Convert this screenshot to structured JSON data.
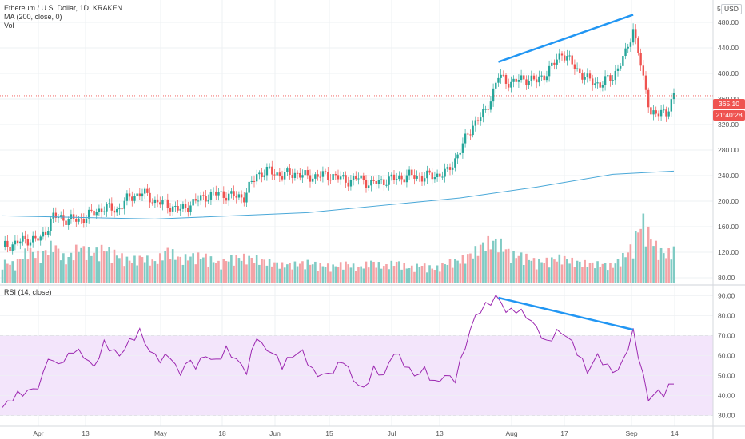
{
  "header": {
    "symbol": "Ethereum / U.S. Dollar, 1D, KRAKEN",
    "ma_label": "MA (200, close, 0)",
    "vol_label": "Vol",
    "currency": "USD",
    "partial_tick": "5"
  },
  "rsi_panel": {
    "label": "RSI (14, close)"
  },
  "badges": {
    "last_price": "365.10",
    "countdown": "21:40:28"
  },
  "colors": {
    "up": "#26a69a",
    "down": "#ef5350",
    "vol_up": "#80cbc4",
    "vol_down": "#f4a3a6",
    "ma": "#4aa8d8",
    "rsi": "#9c27b0",
    "rsi_band": "#f3e5fb",
    "trendline": "#2196f3",
    "grid": "#eef0f3",
    "price_line": "#ef5350"
  },
  "chart_data": [
    {
      "type": "candlestick",
      "title": "Ethereum / U.S. Dollar, 1D, KRAKEN",
      "ylabel": "USD",
      "x_tick_labels": [
        "Apr",
        "13",
        "May",
        "18",
        "Jun",
        "15",
        "Jul",
        "13",
        "Aug",
        "17",
        "Sep",
        "14"
      ],
      "y_tick_labels": [
        "480.00",
        "440.00",
        "400.00",
        "360.00",
        "320.00",
        "280.00",
        "240.00",
        "200.00",
        "160.00",
        "120.00",
        "80.00"
      ],
      "ylim": [
        70,
        515
      ],
      "last_price": 365.1,
      "close_trend": [
        [
          0,
          128
        ],
        [
          5,
          134
        ],
        [
          10,
          140
        ],
        [
          15,
          140
        ],
        [
          20,
          176
        ],
        [
          25,
          172
        ],
        [
          30,
          170
        ],
        [
          35,
          180
        ],
        [
          40,
          190
        ],
        [
          45,
          186
        ],
        [
          50,
          206
        ],
        [
          55,
          213
        ],
        [
          60,
          200
        ],
        [
          65,
          194
        ],
        [
          70,
          186
        ],
        [
          75,
          198
        ],
        [
          80,
          208
        ],
        [
          85,
          212
        ],
        [
          90,
          208
        ],
        [
          95,
          207
        ],
        [
          100,
          242
        ],
        [
          105,
          247
        ],
        [
          110,
          240
        ],
        [
          115,
          244
        ],
        [
          120,
          238
        ],
        [
          125,
          240
        ],
        [
          130,
          240
        ],
        [
          135,
          232
        ],
        [
          140,
          236
        ],
        [
          145,
          227
        ],
        [
          150,
          232
        ],
        [
          155,
          236
        ],
        [
          160,
          240
        ],
        [
          165,
          238
        ],
        [
          170,
          240
        ],
        [
          175,
          245
        ],
        [
          180,
          280
        ],
        [
          185,
          320
        ],
        [
          190,
          340
        ],
        [
          195,
          395
        ],
        [
          200,
          385
        ],
        [
          205,
          392
        ],
        [
          210,
          388
        ],
        [
          215,
          405
        ],
        [
          220,
          433
        ],
        [
          225,
          410
        ],
        [
          230,
          390
        ],
        [
          235,
          383
        ],
        [
          240,
          395
        ],
        [
          245,
          430
        ],
        [
          248,
          470
        ],
        [
          250,
          435
        ],
        [
          252,
          388
        ],
        [
          255,
          340
        ],
        [
          258,
          335
        ],
        [
          261,
          340
        ],
        [
          264,
          365
        ]
      ],
      "series": [
        {
          "name": "MA (200, close, 0)",
          "values": [
            [
              0,
              177
            ],
            [
              60,
              172
            ],
            [
              120,
              182
            ],
            [
              180,
              205
            ],
            [
              210,
              222
            ],
            [
              240,
              242
            ],
            [
              264,
              247
            ]
          ]
        }
      ],
      "trendline": [
        [
          195,
          418
        ],
        [
          248,
          492
        ]
      ]
    },
    {
      "type": "bar",
      "title": "Vol",
      "values": [
        [
          0,
          28
        ],
        [
          5,
          25
        ],
        [
          10,
          44
        ],
        [
          15,
          36
        ],
        [
          20,
          52
        ],
        [
          25,
          30
        ],
        [
          30,
          48
        ],
        [
          35,
          40
        ],
        [
          40,
          46
        ],
        [
          45,
          38
        ],
        [
          50,
          30
        ],
        [
          55,
          34
        ],
        [
          60,
          28
        ],
        [
          65,
          44
        ],
        [
          70,
          32
        ],
        [
          75,
          36
        ],
        [
          80,
          35
        ],
        [
          85,
          26
        ],
        [
          90,
          33
        ],
        [
          95,
          34
        ],
        [
          100,
          32
        ],
        [
          105,
          28
        ],
        [
          110,
          24
        ],
        [
          115,
          25
        ],
        [
          120,
          27
        ],
        [
          125,
          24
        ],
        [
          130,
          22
        ],
        [
          135,
          26
        ],
        [
          140,
          20
        ],
        [
          145,
          28
        ],
        [
          150,
          22
        ],
        [
          155,
          28
        ],
        [
          160,
          20
        ],
        [
          165,
          24
        ],
        [
          170,
          19
        ],
        [
          175,
          27
        ],
        [
          180,
          30
        ],
        [
          185,
          40
        ],
        [
          190,
          54
        ],
        [
          195,
          55
        ],
        [
          200,
          38
        ],
        [
          205,
          36
        ],
        [
          210,
          28
        ],
        [
          215,
          30
        ],
        [
          220,
          34
        ],
        [
          225,
          28
        ],
        [
          230,
          26
        ],
        [
          235,
          25
        ],
        [
          240,
          23
        ],
        [
          245,
          38
        ],
        [
          248,
          50
        ],
        [
          250,
          72
        ],
        [
          252,
          82
        ],
        [
          255,
          60
        ],
        [
          258,
          44
        ],
        [
          261,
          38
        ],
        [
          264,
          45
        ]
      ]
    },
    {
      "type": "line",
      "title": "RSI (14, close)",
      "y_tick_labels": [
        "90.00",
        "80.00",
        "70.00",
        "60.00",
        "50.00",
        "40.00",
        "30.00"
      ],
      "ylim": [
        25,
        95
      ],
      "band": [
        30,
        70
      ],
      "values": [
        [
          0,
          34
        ],
        [
          5,
          40
        ],
        [
          10,
          42
        ],
        [
          15,
          45
        ],
        [
          18,
          60
        ],
        [
          20,
          56
        ],
        [
          24,
          57
        ],
        [
          28,
          63
        ],
        [
          32,
          60
        ],
        [
          36,
          54
        ],
        [
          40,
          66
        ],
        [
          43,
          63
        ],
        [
          46,
          60
        ],
        [
          50,
          67
        ],
        [
          54,
          72
        ],
        [
          58,
          62
        ],
        [
          62,
          58
        ],
        [
          66,
          60
        ],
        [
          70,
          50
        ],
        [
          72,
          57
        ],
        [
          76,
          55
        ],
        [
          80,
          60
        ],
        [
          84,
          57
        ],
        [
          88,
          63
        ],
        [
          92,
          58
        ],
        [
          96,
          52
        ],
        [
          100,
          70
        ],
        [
          103,
          63
        ],
        [
          106,
          62
        ],
        [
          110,
          55
        ],
        [
          114,
          60
        ],
        [
          118,
          62
        ],
        [
          122,
          52
        ],
        [
          126,
          50
        ],
        [
          130,
          52
        ],
        [
          134,
          58
        ],
        [
          138,
          48
        ],
        [
          142,
          43
        ],
        [
          146,
          53
        ],
        [
          150,
          50
        ],
        [
          154,
          62
        ],
        [
          158,
          56
        ],
        [
          162,
          50
        ],
        [
          166,
          53
        ],
        [
          170,
          46
        ],
        [
          174,
          50
        ],
        [
          178,
          48
        ],
        [
          182,
          65
        ],
        [
          186,
          80
        ],
        [
          190,
          85
        ],
        [
          195,
          90
        ],
        [
          198,
          82
        ],
        [
          202,
          83
        ],
        [
          206,
          80
        ],
        [
          210,
          74
        ],
        [
          214,
          66
        ],
        [
          218,
          72
        ],
        [
          222,
          70
        ],
        [
          226,
          62
        ],
        [
          230,
          52
        ],
        [
          234,
          60
        ],
        [
          238,
          54
        ],
        [
          242,
          52
        ],
        [
          246,
          64
        ],
        [
          248,
          72
        ],
        [
          251,
          55
        ],
        [
          254,
          38
        ],
        [
          257,
          42
        ],
        [
          260,
          41
        ],
        [
          264,
          47
        ]
      ],
      "trendline": [
        [
          195,
          89
        ],
        [
          248,
          73
        ]
      ]
    }
  ]
}
